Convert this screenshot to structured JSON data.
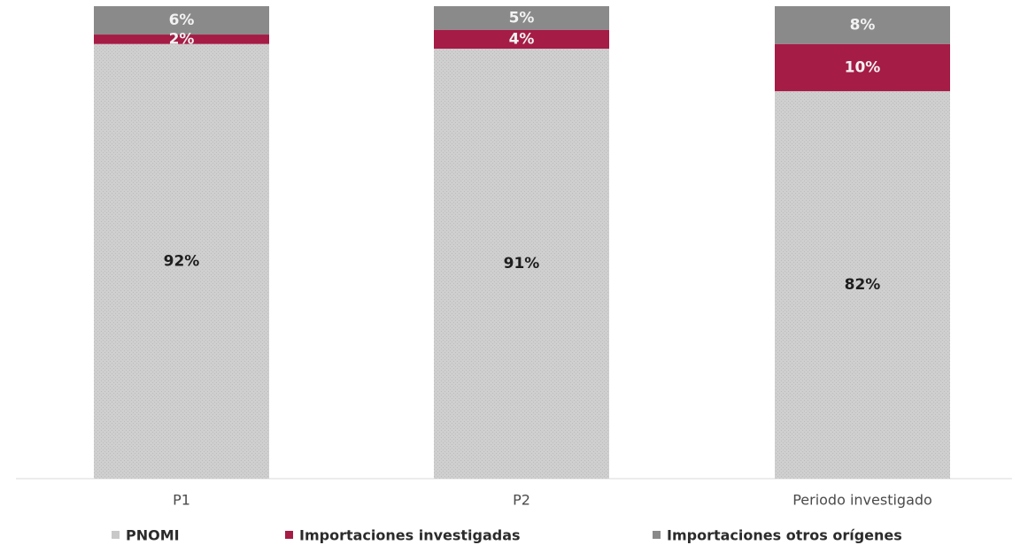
{
  "chart_data": {
    "type": "bar",
    "stacked": true,
    "percent": true,
    "categories": [
      "P1",
      "P2",
      "Periodo investigado"
    ],
    "series": [
      {
        "name": "PNOMI",
        "values": [
          92,
          91,
          82
        ],
        "labels": [
          "92%",
          "91%",
          "82%"
        ],
        "color": "#cfcfcf",
        "label_color": "#1e1e1e"
      },
      {
        "name": "Importaciones investigadas",
        "values": [
          2,
          4,
          10
        ],
        "labels": [
          "2%",
          "4%",
          "10%"
        ],
        "color": "#a51c46",
        "label_color": "#f2f2f2"
      },
      {
        "name": "Importaciones otros orígenes",
        "values": [
          6,
          5,
          8
        ],
        "labels": [
          "6%",
          "5%",
          "8%"
        ],
        "color": "#8a8a8a",
        "label_color": "#f2f2f2"
      }
    ],
    "ylim": [
      0,
      100
    ],
    "grid": false,
    "legend_position": "bottom"
  }
}
